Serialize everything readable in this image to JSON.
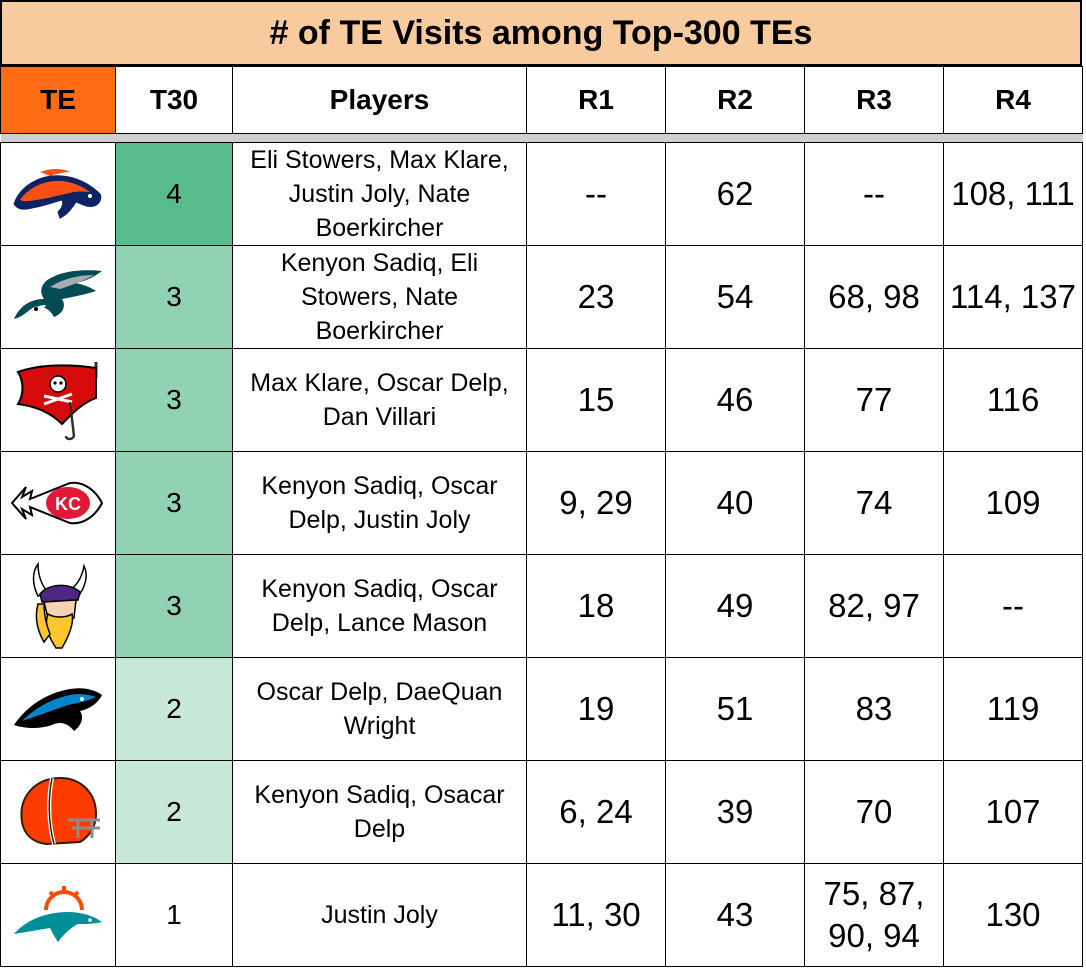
{
  "title": "# of TE Visits among Top-300 TEs",
  "headers": {
    "te": "TE",
    "t30": "T30",
    "players": "Players",
    "r1": "R1",
    "r2": "R2",
    "r3": "R3",
    "r4": "R4"
  },
  "colors": {
    "title_bg": "#f8cb9e",
    "te_header_bg": "#ff6c15",
    "t30_4": "#57bb8a",
    "t30_3": "#90d2b3",
    "t30_2": "#c8e8d8",
    "t30_1": "#ffffff"
  },
  "rows": [
    {
      "team_icon": "broncos-logo-icon",
      "t30": "4",
      "players": "Eli Stowers, Max Klare, Justin Joly, Nate Boerkircher",
      "r1": "--",
      "r2": "62",
      "r3": "--",
      "r4": "108, 111"
    },
    {
      "team_icon": "eagles-logo-icon",
      "t30": "3",
      "players": "Kenyon Sadiq, Eli Stowers, Nate Boerkircher",
      "r1": "23",
      "r2": "54",
      "r3": "68, 98",
      "r4": "114, 137"
    },
    {
      "team_icon": "buccaneers-logo-icon",
      "t30": "3",
      "players": "Max Klare, Oscar Delp, Dan Villari",
      "r1": "15",
      "r2": "46",
      "r3": "77",
      "r4": "116"
    },
    {
      "team_icon": "chiefs-logo-icon",
      "t30": "3",
      "players": "Kenyon Sadiq, Oscar Delp, Justin Joly",
      "r1": "9, 29",
      "r2": "40",
      "r3": "74",
      "r4": "109"
    },
    {
      "team_icon": "vikings-logo-icon",
      "t30": "3",
      "players": "Kenyon Sadiq, Oscar Delp, Lance Mason",
      "r1": "18",
      "r2": "49",
      "r3": "82, 97",
      "r4": "--"
    },
    {
      "team_icon": "panthers-logo-icon",
      "t30": "2",
      "players": "Oscar Delp, DaeQuan Wright",
      "r1": "19",
      "r2": "51",
      "r3": "83",
      "r4": "119"
    },
    {
      "team_icon": "browns-logo-icon",
      "t30": "2",
      "players": "Kenyon Sadiq, Osacar Delp",
      "r1": "6, 24",
      "r2": "39",
      "r3": "70",
      "r4": "107"
    },
    {
      "team_icon": "dolphins-logo-icon",
      "t30": "1",
      "players": "Justin Joly",
      "r1": "11, 30",
      "r2": "43",
      "r3": "75, 87, 90, 94",
      "r4": "130"
    }
  ]
}
